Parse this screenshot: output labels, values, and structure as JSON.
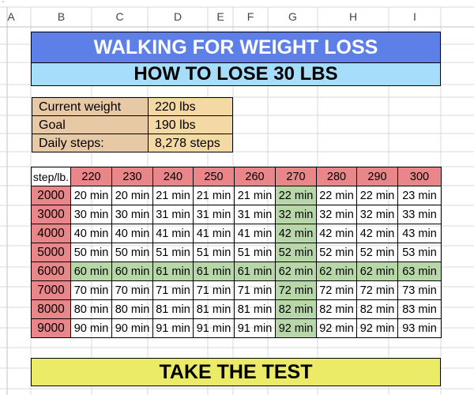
{
  "columns": [
    "A",
    "B",
    "C",
    "D",
    "E",
    "F",
    "G",
    "H",
    "I"
  ],
  "title": "WALKING FOR WEIGHT LOSS",
  "subtitle": "HOW TO LOSE 30 LBS",
  "cta": "TAKE THE TEST",
  "info": [
    {
      "label": "Current weight",
      "value": "220 lbs"
    },
    {
      "label": "Goal",
      "value": "190 lbs"
    },
    {
      "label": "Daily steps:",
      "value": "8,278 steps"
    }
  ],
  "table": {
    "corner": "step/lb.",
    "weights": [
      "220",
      "230",
      "240",
      "250",
      "260",
      "270",
      "280",
      "290",
      "300"
    ],
    "rows": [
      {
        "steps": "2000",
        "cells": [
          "20 min",
          "20 min",
          "21 min",
          "21 min",
          "21 min",
          "22 min",
          "22 min",
          "22 min",
          "23 min"
        ]
      },
      {
        "steps": "3000",
        "cells": [
          "30 min",
          "30 min",
          "31 min",
          "31 min",
          "31 min",
          "32 min",
          "32 min",
          "32 min",
          "33 min"
        ]
      },
      {
        "steps": "4000",
        "cells": [
          "40 min",
          "40 min",
          "41 min",
          "41 min",
          "41 min",
          "42 min",
          "42 min",
          "42 min",
          "43 min"
        ]
      },
      {
        "steps": "5000",
        "cells": [
          "50 min",
          "50 min",
          "51 min",
          "51 min",
          "51 min",
          "52 min",
          "52 min",
          "52 min",
          "53 min"
        ]
      },
      {
        "steps": "6000",
        "cells": [
          "60 min",
          "60 min",
          "61 min",
          "61 min",
          "61 min",
          "62 min",
          "62 min",
          "62 min",
          "63 min"
        ]
      },
      {
        "steps": "7000",
        "cells": [
          "70 min",
          "70 min",
          "71 min",
          "71 min",
          "71 min",
          "72 min",
          "72 min",
          "72 min",
          "73 min"
        ]
      },
      {
        "steps": "8000",
        "cells": [
          "80 min",
          "80 min",
          "81 min",
          "81 min",
          "81 min",
          "82 min",
          "82 min",
          "82 min",
          "83 min"
        ]
      },
      {
        "steps": "9000",
        "cells": [
          "90 min",
          "90 min",
          "91 min",
          "91 min",
          "91 min",
          "92 min",
          "92 min",
          "92 min",
          "93 min"
        ]
      }
    ],
    "highlight_row": 4,
    "highlight_col": 5
  },
  "colors": {
    "title_bg": "#5d7fe8",
    "subtitle_bg": "#a6ddfb",
    "cta_bg": "#ebeb67",
    "info_label_bg": "#e8c9a6",
    "info_value_bg": "#f4d9a4",
    "header_bg": "#e8868a",
    "highlight_bg": "#b8d7a8"
  }
}
